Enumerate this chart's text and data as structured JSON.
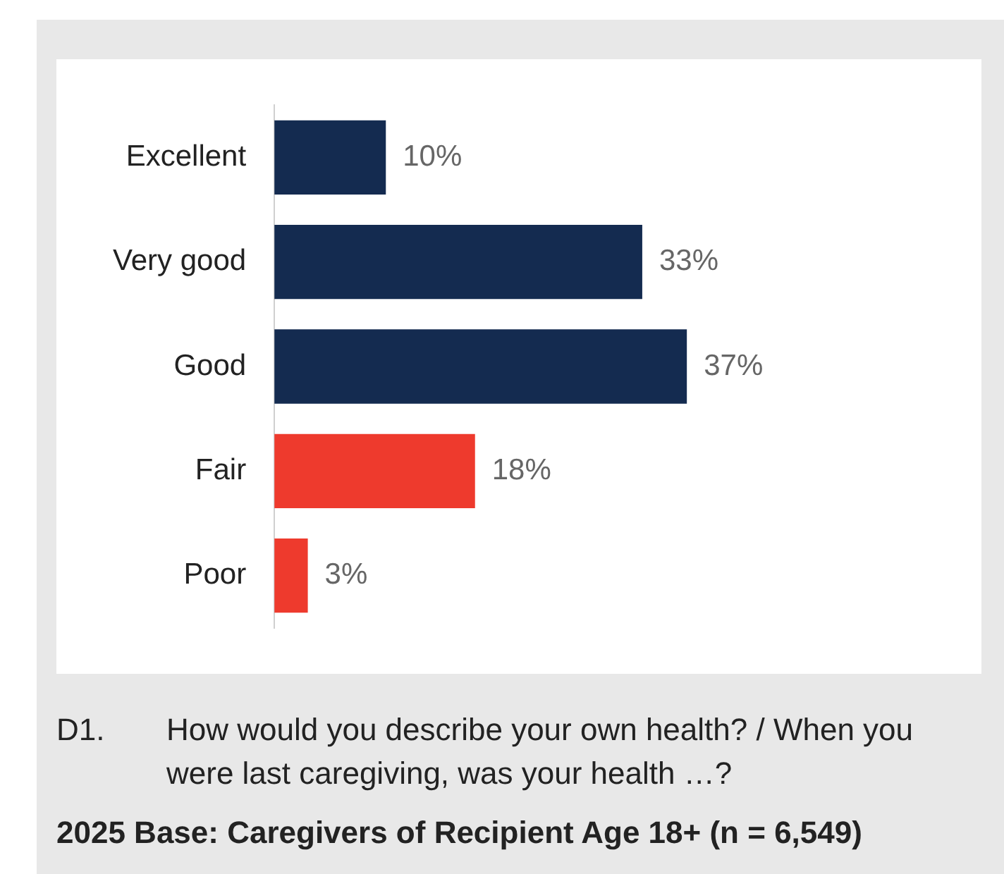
{
  "chart_data": {
    "type": "bar",
    "orientation": "horizontal",
    "categories": [
      "Excellent",
      "Very good",
      "Good",
      "Fair",
      "Poor"
    ],
    "values": [
      10,
      33,
      37,
      18,
      3
    ],
    "colors": [
      "#142b50",
      "#142b50",
      "#142b50",
      "#ee3a2d",
      "#ee3a2d"
    ],
    "value_labels": [
      "10%",
      "33%",
      "37%",
      "18%",
      "3%"
    ],
    "annotations": [
      "D1.",
      "How would you describe your own health? / When you were last caregiving, was your health …?",
      "2025 Base: Caregivers of Recipient Age 18+ (n = 6,549)"
    ]
  }
}
